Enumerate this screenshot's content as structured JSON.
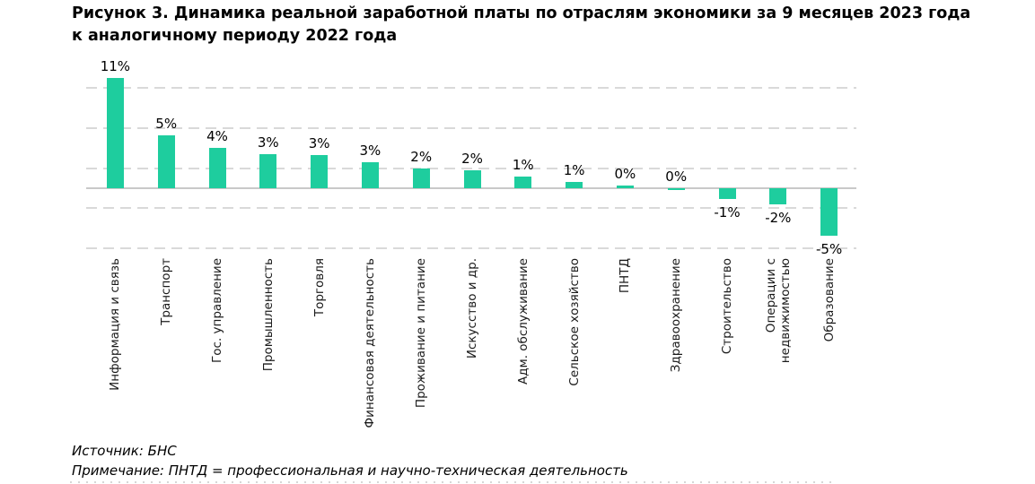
{
  "figure": {
    "title": "Рисунок 3. Динамика реальной заработной платы по отраслям экономики за 9 месяцев 2023 года\nк аналогичному периоду 2022 года",
    "source": "Источник: БНС",
    "note": "Примечание: ПНТД = профессиональная и научно-техническая деятельность"
  },
  "colors": {
    "bar": "#1ecd9e",
    "gridline": "#d9d9d9",
    "zero_axis": "#c9c9c9",
    "text": "#000000",
    "category_text": "#1a1a1a"
  },
  "chart_data": {
    "type": "bar",
    "title": "Динамика реальной заработной платы по отраслям экономики за 9 месяцев 2023 года к аналогичному периоду 2022 года",
    "xlabel": "",
    "ylabel": "",
    "unit": "%",
    "categories": [
      "Информация и связь",
      "Транспорт",
      "Гос. управление",
      "Промышленность",
      "Торговля",
      "Финансовая деятельность",
      "Проживание и питание",
      "Искусство и др.",
      "Адм. обслуживание",
      "Сельское хозяйство",
      "ПНТД",
      "Здравоохранение",
      "Строительство",
      "Операции с\nнедвижимостью",
      "Образование"
    ],
    "values": [
      11,
      5,
      4,
      3,
      3,
      3,
      2,
      2,
      1,
      1,
      0,
      0,
      -1,
      -2,
      -5
    ],
    "value_labels": [
      "11%",
      "5%",
      "4%",
      "3%",
      "3%",
      "3%",
      "2%",
      "2%",
      "1%",
      "1%",
      "0%",
      "0%",
      "-1%",
      "-2%",
      "-5%"
    ],
    "bar_heights_pct": [
      11.0,
      5.3,
      4.0,
      3.4,
      3.3,
      2.6,
      1.95,
      1.8,
      1.2,
      0.6,
      0.3,
      -0.2,
      -1.05,
      -1.65,
      -4.7
    ],
    "ylim": [
      -6.8,
      12.5
    ],
    "gridlines_at": [
      10,
      6,
      2,
      -2,
      -6
    ],
    "grid": "horizontal-dashed",
    "legend": "none",
    "y_tick_labels_visible": false,
    "category_label_rotation": 90
  }
}
